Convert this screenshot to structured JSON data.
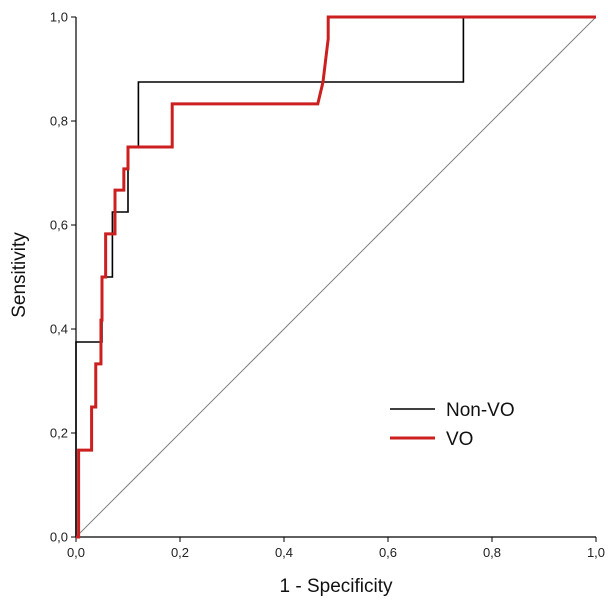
{
  "chart_data": {
    "type": "line",
    "title": "",
    "xlabel": "1 - Specificity",
    "ylabel": "Sensitivity",
    "xlim": [
      0,
      1
    ],
    "ylim": [
      0,
      1
    ],
    "xticks": [
      "0,0",
      "0,2",
      "0,4",
      "0,6",
      "0,8",
      "1,0"
    ],
    "yticks": [
      "0,0",
      "0,2",
      "0,4",
      "0,6",
      "0,8",
      "1,0"
    ],
    "grid": false,
    "legend_position": "bottom-right",
    "reference_line": {
      "from": [
        0,
        0
      ],
      "to": [
        1,
        1
      ],
      "color": "#808080"
    },
    "series": [
      {
        "name": "Non-VO",
        "color": "#000000",
        "points": [
          [
            0,
            0
          ],
          [
            0,
            0.375
          ],
          [
            0.05,
            0.375
          ],
          [
            0.05,
            0.5
          ],
          [
            0.07,
            0.5
          ],
          [
            0.07,
            0.625
          ],
          [
            0.1,
            0.625
          ],
          [
            0.1,
            0.75
          ],
          [
            0.12,
            0.75
          ],
          [
            0.12,
            0.875
          ],
          [
            0.745,
            0.875
          ],
          [
            0.745,
            1.0
          ],
          [
            1.0,
            1.0
          ]
        ]
      },
      {
        "name": "VO",
        "color": "#cc1f1f",
        "points": [
          [
            0,
            0
          ],
          [
            0.005,
            0
          ],
          [
            0.005,
            0.167
          ],
          [
            0.03,
            0.167
          ],
          [
            0.03,
            0.25
          ],
          [
            0.038,
            0.25
          ],
          [
            0.038,
            0.333
          ],
          [
            0.048,
            0.333
          ],
          [
            0.048,
            0.417
          ],
          [
            0.05,
            0.417
          ],
          [
            0.05,
            0.5
          ],
          [
            0.057,
            0.5
          ],
          [
            0.057,
            0.583
          ],
          [
            0.075,
            0.583
          ],
          [
            0.075,
            0.667
          ],
          [
            0.092,
            0.667
          ],
          [
            0.092,
            0.708
          ],
          [
            0.1,
            0.708
          ],
          [
            0.1,
            0.75
          ],
          [
            0.185,
            0.75
          ],
          [
            0.185,
            0.833
          ],
          [
            0.465,
            0.833
          ],
          [
            0.475,
            0.875
          ],
          [
            0.48,
            0.917
          ],
          [
            0.485,
            0.958
          ],
          [
            0.485,
            1.0
          ],
          [
            1.0,
            1.0
          ]
        ]
      }
    ]
  }
}
